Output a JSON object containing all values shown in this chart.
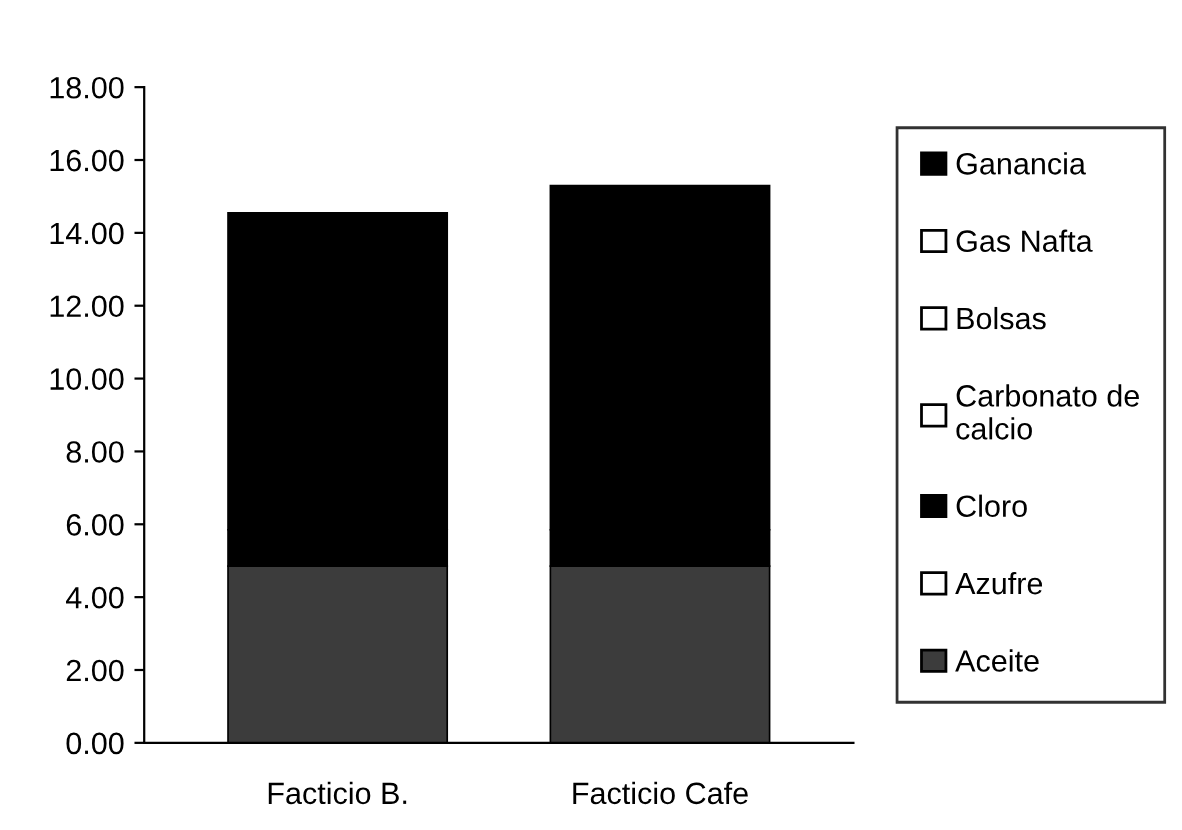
{
  "chart_data": {
    "type": "bar",
    "stacked": true,
    "categories": [
      "Facticio B.",
      "Facticio Cafe"
    ],
    "series": [
      {
        "name": "Aceite",
        "color": "#3c3c3c",
        "values": [
          4.85,
          4.85
        ]
      },
      {
        "name": "Azufre",
        "color": "#ffffff",
        "values": [
          null,
          null
        ]
      },
      {
        "name": "Cloro",
        "color": "#000000",
        "values": [
          1.0,
          1.0
        ]
      },
      {
        "name": "Carbonato de\ncalcio",
        "color": "#ffffff",
        "values": [
          null,
          null
        ]
      },
      {
        "name": "Bolsas",
        "color": "#ffffff",
        "values": [
          null,
          null
        ]
      },
      {
        "name": "Gas Nafta",
        "color": "#ffffff",
        "values": [
          null,
          null
        ]
      },
      {
        "name": "Ganancia",
        "color": "#000000",
        "values": [
          8.7,
          9.45
        ]
      }
    ],
    "ylim": [
      0,
      18
    ],
    "yticks": [
      {
        "value": 0,
        "label": "0.00"
      },
      {
        "value": 2,
        "label": "2.00"
      },
      {
        "value": 4,
        "label": "4.00"
      },
      {
        "value": 6,
        "label": "6.00"
      },
      {
        "value": 8,
        "label": "8.00"
      },
      {
        "value": 10,
        "label": "10.00"
      },
      {
        "value": 12,
        "label": "12.00"
      },
      {
        "value": 14,
        "label": "14.00"
      },
      {
        "value": 16,
        "label": "16.00"
      },
      {
        "value": 18,
        "label": "18.00"
      }
    ],
    "grid": false,
    "legend": "right"
  }
}
